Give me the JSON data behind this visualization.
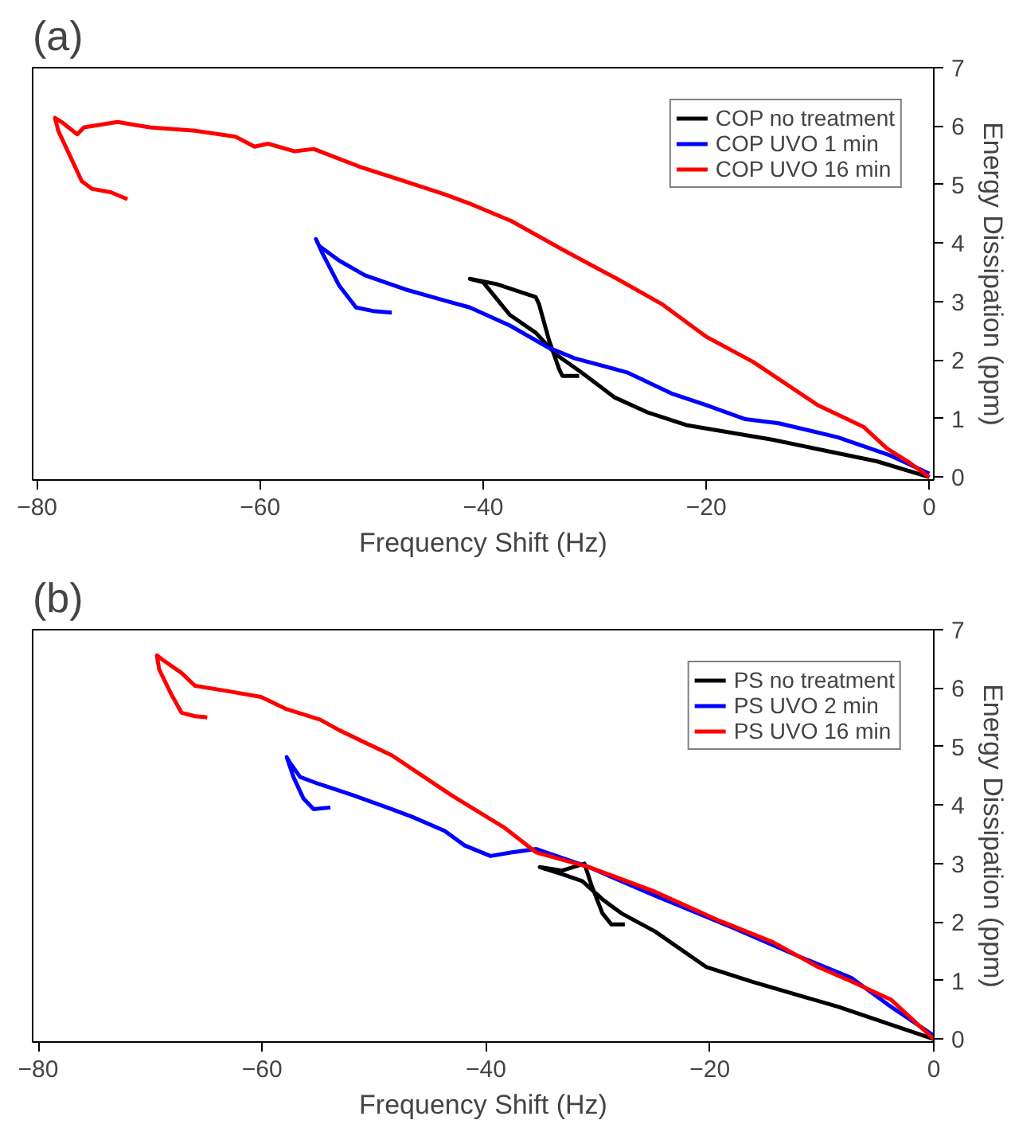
{
  "chart_data": [
    {
      "type": "line",
      "title": "(a)",
      "xlabel": "Frequency Shift (Hz)",
      "y2label": "Energy Dissipation (ppm)",
      "xlim": [
        -80.4,
        0.4
      ],
      "xticks": [
        -80,
        -60,
        -40,
        -20,
        0
      ],
      "y2lim": [
        -0.05,
        7
      ],
      "y2ticks": [
        0,
        1,
        2,
        3,
        4,
        5,
        6,
        7
      ],
      "legend": "top right",
      "grid": false,
      "series": [
        {
          "name": "COP no treatment",
          "color": "#000000",
          "axis": "y2",
          "x": [
            0,
            -4.7,
            -14.1,
            -21.8,
            -25.3,
            -28.2,
            -31.2,
            -33.5,
            -35.3,
            -37.6,
            -40,
            -41.2,
            -38.8,
            -35.3,
            -35,
            -34.1,
            -33.2,
            -32.9,
            -31.4
          ],
          "values": [
            0,
            0.27,
            0.64,
            0.89,
            1.11,
            1.36,
            1.79,
            2.1,
            2.47,
            2.77,
            3.33,
            3.39,
            3.3,
            3.08,
            2.96,
            2.34,
            1.85,
            1.73,
            1.73
          ]
        },
        {
          "name": "COP UVO 1 min",
          "color": "#0000ff",
          "axis": "y2",
          "x": [
            0,
            -3.5,
            -8.2,
            -13.5,
            -16.5,
            -20,
            -23,
            -27.1,
            -31.8,
            -34.2,
            -37.6,
            -41.2,
            -43.5,
            -47,
            -50.6,
            -52.9,
            -54.7,
            -55,
            -54.4,
            -52.9,
            -51.4,
            -49.9,
            -48.2
          ],
          "values": [
            0.06,
            0.37,
            0.68,
            0.92,
            0.99,
            1.23,
            1.42,
            1.79,
            2.03,
            2.22,
            2.59,
            2.9,
            3.02,
            3.21,
            3.45,
            3.7,
            3.95,
            4.07,
            3.82,
            3.27,
            2.9,
            2.84,
            2.81
          ]
        },
        {
          "name": "COP UVO 16 min",
          "color": "#ff0000",
          "axis": "y2",
          "x": [
            0,
            -1.8,
            -3.8,
            -5.9,
            -10,
            -15.8,
            -20,
            -24,
            -28,
            -32.8,
            -37.5,
            -41,
            -43.4,
            -46.9,
            -51,
            -55.2,
            -56.9,
            -59.3,
            -60.5,
            -62.2,
            -65.8,
            -69.9,
            -72.8,
            -75.8,
            -76.4,
            -77.8,
            -78.4,
            -78.1,
            -76.9,
            -76,
            -75.1,
            -73.4,
            -71.9
          ],
          "values": [
            0,
            0.25,
            0.49,
            0.86,
            1.23,
            1.97,
            2.4,
            2.96,
            3.39,
            3.88,
            4.38,
            4.66,
            4.83,
            5.05,
            5.3,
            5.61,
            5.57,
            5.7,
            5.65,
            5.82,
            5.92,
            5.98,
            6.07,
            5.98,
            5.86,
            6.07,
            6.14,
            5.92,
            5.43,
            5.06,
            4.93,
            4.87,
            4.75
          ]
        }
      ]
    },
    {
      "type": "line",
      "title": "(b)",
      "xlabel": "Frequency Shift (Hz)",
      "y2label": "Energy Dissipation (ppm)",
      "xlim": [
        -80.5,
        0
      ],
      "xticks": [
        -80,
        -60,
        -40,
        -20,
        0
      ],
      "y2lim": [
        -0.05,
        7
      ],
      "y2ticks": [
        0,
        1,
        2,
        3,
        4,
        5,
        6,
        7
      ],
      "legend": "top right",
      "grid": false,
      "series": [
        {
          "name": "PS no treatment",
          "color": "#000000",
          "axis": "y2",
          "x": [
            0,
            -8.5,
            -16.2,
            -20.3,
            -24.9,
            -27.9,
            -29.6,
            -31.4,
            -33.2,
            -35.2,
            -33.2,
            -31.2,
            -30.6,
            -29.6,
            -28.8,
            -27.6
          ],
          "values": [
            0,
            0.55,
            0.98,
            1.23,
            1.84,
            2.15,
            2.39,
            2.7,
            2.82,
            2.94,
            2.88,
            3.0,
            2.64,
            2.15,
            1.96,
            1.96
          ]
        },
        {
          "name": "PS UVO 2 min",
          "color": "#0000ff",
          "axis": "y2",
          "x": [
            0,
            -3.8,
            -7.3,
            -12,
            -17.9,
            -24.9,
            -30.8,
            -35.5,
            -37.8,
            -39.6,
            -41.9,
            -43.7,
            -46.6,
            -48.4,
            -51.9,
            -54.9,
            -56.6,
            -57.5,
            -57.8,
            -57.2,
            -56.3,
            -55.4,
            -53.9
          ],
          "values": [
            0.06,
            0.55,
            1.04,
            1.41,
            1.9,
            2.45,
            2.94,
            3.25,
            3.19,
            3.13,
            3.31,
            3.56,
            3.8,
            3.93,
            4.17,
            4.36,
            4.48,
            4.72,
            4.82,
            4.48,
            4.11,
            3.93,
            3.96
          ]
        },
        {
          "name": "PS UVO 16 min",
          "color": "#ff0000",
          "axis": "y2",
          "x": [
            0,
            -3.8,
            -7.3,
            -10.3,
            -14.4,
            -19.1,
            -24.9,
            -30.8,
            -35.5,
            -38.4,
            -43.1,
            -48.4,
            -53.1,
            -54.8,
            -57.8,
            -60.1,
            -63.1,
            -66,
            -67.2,
            -69,
            -69.4,
            -69.2,
            -68.1,
            -67.2,
            -66,
            -64.9
          ],
          "values": [
            0,
            0.67,
            0.98,
            1.23,
            1.66,
            2.02,
            2.52,
            2.94,
            3.19,
            3.62,
            4.17,
            4.85,
            5.28,
            5.46,
            5.64,
            5.85,
            5.95,
            6.04,
            6.26,
            6.5,
            6.56,
            6.32,
            5.89,
            5.58,
            5.52,
            5.5
          ]
        }
      ]
    }
  ]
}
